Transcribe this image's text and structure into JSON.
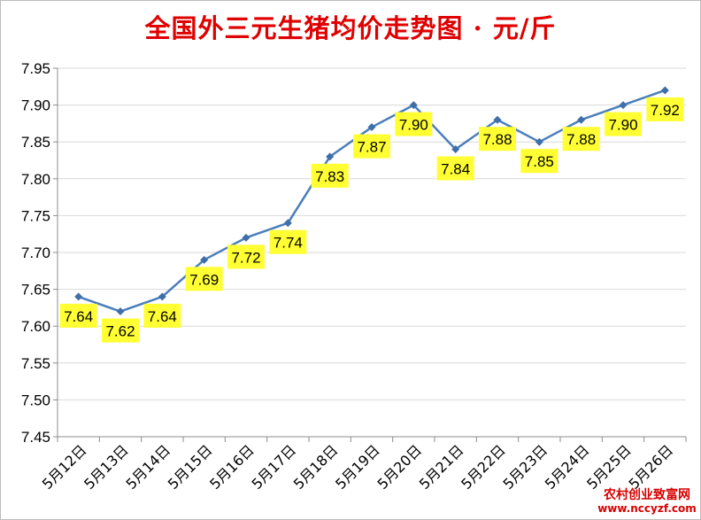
{
  "colors": {
    "title": "#e00000",
    "line": "#4a7ebb",
    "marker": "#3e6fa8",
    "label_bg": "#ffff33",
    "grid": "#d9d9d9",
    "axis": "#8c8c8c",
    "text": "#000000",
    "watermark": "#d60000"
  },
  "watermark": {
    "text": "农村创业致富网",
    "url": "www.nccyzf.com"
  },
  "chart_data": {
    "type": "line",
    "title": "全国外三元生猪均价走势图 · 元/斤",
    "xlabel": "",
    "ylabel": "",
    "categories": [
      "5月12日",
      "5月13日",
      "5月14日",
      "5月15日",
      "5月16日",
      "5月17日",
      "5月18日",
      "5月19日",
      "5月20日",
      "5月21日",
      "5月22日",
      "5月23日",
      "5月24日",
      "5月25日",
      "5月26日"
    ],
    "series": [
      {
        "values": [
          7.64,
          7.62,
          7.64,
          7.69,
          7.72,
          7.74,
          7.83,
          7.87,
          7.9,
          7.84,
          7.88,
          7.85,
          7.88,
          7.9,
          7.92
        ],
        "value_labels": [
          "7.64",
          "7.62",
          "7.64",
          "7.69",
          "7.72",
          "7.74",
          "7.83",
          "7.87",
          "7.90",
          "7.84",
          "7.88",
          "7.85",
          "7.88",
          "7.90",
          "7.92"
        ]
      }
    ],
    "ylim": [
      7.45,
      7.95
    ],
    "yticks": [
      7.45,
      7.5,
      7.55,
      7.6,
      7.65,
      7.7,
      7.75,
      7.8,
      7.85,
      7.9,
      7.95
    ],
    "ytick_labels": [
      "7.45",
      "7.50",
      "7.55",
      "7.60",
      "7.65",
      "7.70",
      "7.75",
      "7.80",
      "7.85",
      "7.90",
      "7.95"
    ],
    "grid": "horizontal",
    "legend": "none",
    "marker": "diamond",
    "data_labels": "below"
  }
}
